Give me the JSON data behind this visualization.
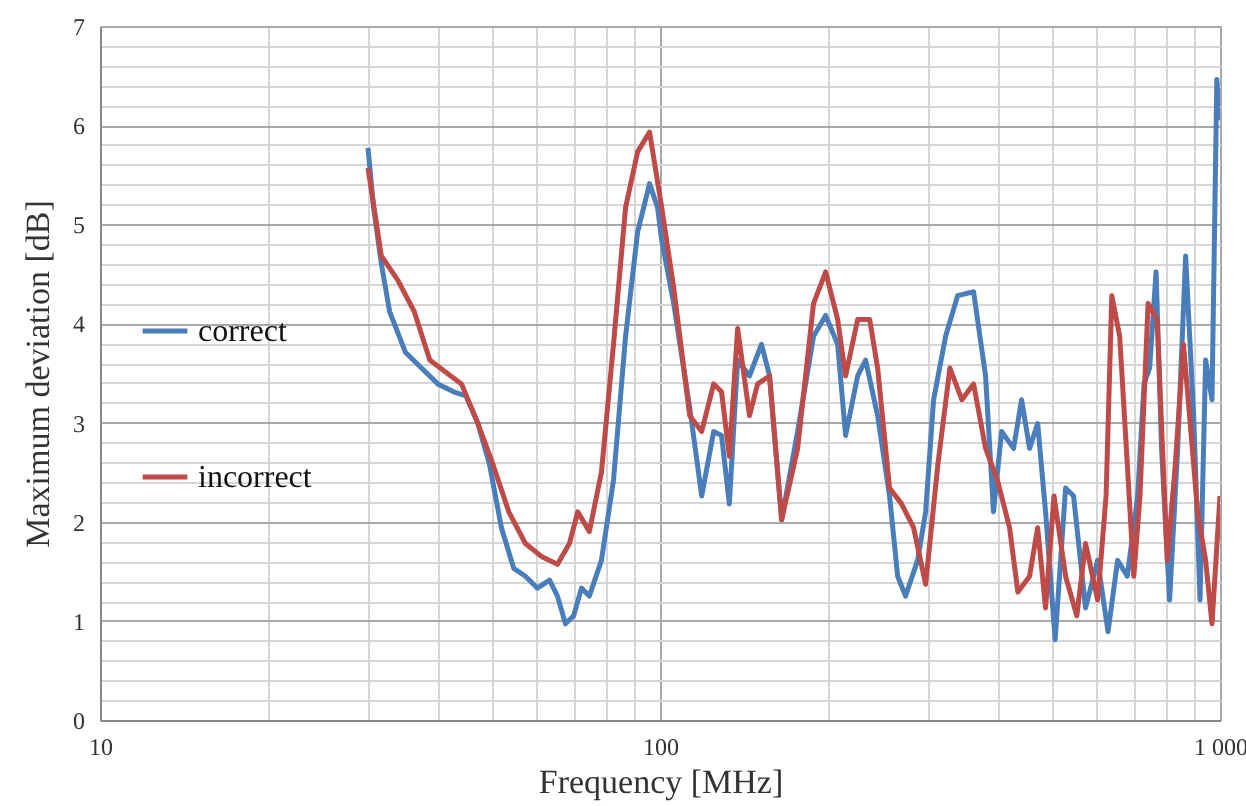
{
  "chart_data": {
    "type": "line",
    "xlabel": "Frequency [MHz]",
    "ylabel": "Maximum deviation [dB]",
    "log": "x",
    "grid": true,
    "legend": "left",
    "xlim": [
      10,
      1000
    ],
    "xticks": [
      10,
      100,
      {
        "value": 1000,
        "label": "1 000"
      }
    ],
    "ylim": [
      0,
      7
    ],
    "yticks": [
      0,
      1,
      2,
      3,
      4,
      5,
      6,
      7
    ],
    "series": [
      {
        "name": "correct",
        "color": "#4a7ebb",
        "x": [
          30.1,
          30.8,
          31.8,
          32.9,
          35.1,
          37.5,
          40.1,
          42.8,
          45.0,
          47.3,
          49.6,
          52.1,
          54.8,
          57.5,
          60.4,
          63.5,
          65.6,
          67.8,
          70.1,
          72.4,
          74.8,
          78.6,
          82.6,
          86.8,
          91.2,
          95.8,
          99.0,
          100.7,
          105.8,
          113,
          118.7,
          124.7,
          128.8,
          133,
          137.6,
          144.5,
          151.8,
          156.9,
          164.9,
          176.1,
          188,
          197.6,
          207.6,
          214.5,
          225.4,
          232.9,
          244.7,
          257,
          265.7,
          274.5,
          288.4,
          298.1,
          308,
          323.6,
          340,
          363,
          381.4,
          394,
          407.4,
          427.9,
          442.3,
          457,
          472.5,
          488.1,
          507.7,
          530,
          547.6,
          575.4,
          604.6,
          631,
          656.4,
          683.1,
          712.8,
          731.7,
          748.7,
          768.8,
          786.4,
          812.8,
          840.3,
          868.2,
          897.4,
          921.2,
          942.6,
          967.6,
          987,
          1000
        ],
        "values": [
          5.77,
          5.17,
          4.6,
          4.12,
          3.71,
          3.55,
          3.39,
          3.31,
          3.27,
          2.99,
          2.58,
          1.94,
          1.53,
          1.45,
          1.33,
          1.41,
          1.25,
          0.97,
          1.05,
          1.33,
          1.25,
          1.61,
          2.42,
          3.87,
          4.92,
          5.41,
          5.17,
          4.84,
          4.2,
          3.15,
          2.26,
          2.91,
          2.87,
          2.18,
          3.63,
          3.47,
          3.79,
          3.47,
          2.02,
          2.91,
          3.87,
          4.08,
          3.79,
          2.87,
          3.47,
          3.63,
          3.07,
          2.26,
          1.45,
          1.25,
          1.61,
          2.1,
          3.23,
          3.87,
          4.28,
          4.32,
          3.47,
          2.1,
          2.91,
          2.74,
          3.23,
          2.74,
          2.99,
          2.1,
          0.81,
          2.34,
          2.26,
          1.13,
          1.61,
          0.89,
          1.61,
          1.45,
          2.26,
          3.39,
          3.55,
          4.52,
          2.74,
          1.21,
          2.74,
          4.68,
          3.07,
          1.21,
          3.63,
          3.23,
          6.46,
          6.05
        ]
      },
      {
        "name": "incorrect",
        "color": "#be4b48",
        "x": [
          30.1,
          31.8,
          34.0,
          36.4,
          38.8,
          41.4,
          44.2,
          47.3,
          50.3,
          53.7,
          57.5,
          61.4,
          65.6,
          68.9,
          71.3,
          74.8,
          78.6,
          82.6,
          86.8,
          91.2,
          95.8,
          100.7,
          105.8,
          113,
          118.7,
          124.7,
          128.8,
          133,
          137.6,
          144.5,
          149.4,
          156.9,
          164.9,
          176.1,
          188,
          197.6,
          207.6,
          214.5,
          225.4,
          236.8,
          244.7,
          257,
          270,
          283.7,
          298.1,
          313.5,
          329.4,
          346,
          363,
          381.4,
          400.5,
          420.9,
          435.6,
          457,
          472.5,
          488.1,
          505.3,
          530,
          555,
          575.4,
          604.6,
          626,
          640.9,
          662,
          683.1,
          701.5,
          719.6,
          744,
          772.1,
          804.9,
          832.3,
          860.4,
          882.3,
          912,
          942.6,
          967.6,
          1000
        ],
        "values": [
          5.57,
          4.68,
          4.44,
          4.12,
          3.63,
          3.51,
          3.39,
          2.99,
          2.58,
          2.1,
          1.78,
          1.65,
          1.57,
          1.78,
          2.1,
          1.9,
          2.5,
          3.79,
          5.17,
          5.73,
          5.93,
          5.17,
          4.36,
          3.07,
          2.91,
          3.39,
          3.31,
          2.66,
          3.95,
          3.07,
          3.39,
          3.47,
          2.02,
          2.74,
          4.2,
          4.52,
          4.04,
          3.47,
          4.04,
          4.04,
          3.55,
          2.34,
          2.18,
          1.94,
          1.37,
          2.58,
          3.55,
          3.23,
          3.39,
          2.74,
          2.42,
          1.94,
          1.29,
          1.45,
          1.94,
          1.13,
          2.26,
          1.45,
          1.05,
          1.78,
          1.21,
          2.26,
          4.28,
          3.87,
          2.58,
          1.45,
          2.26,
          4.2,
          4.04,
          1.61,
          2.58,
          3.79,
          3.07,
          2.1,
          1.61,
          0.97,
          2.26
        ]
      }
    ]
  }
}
